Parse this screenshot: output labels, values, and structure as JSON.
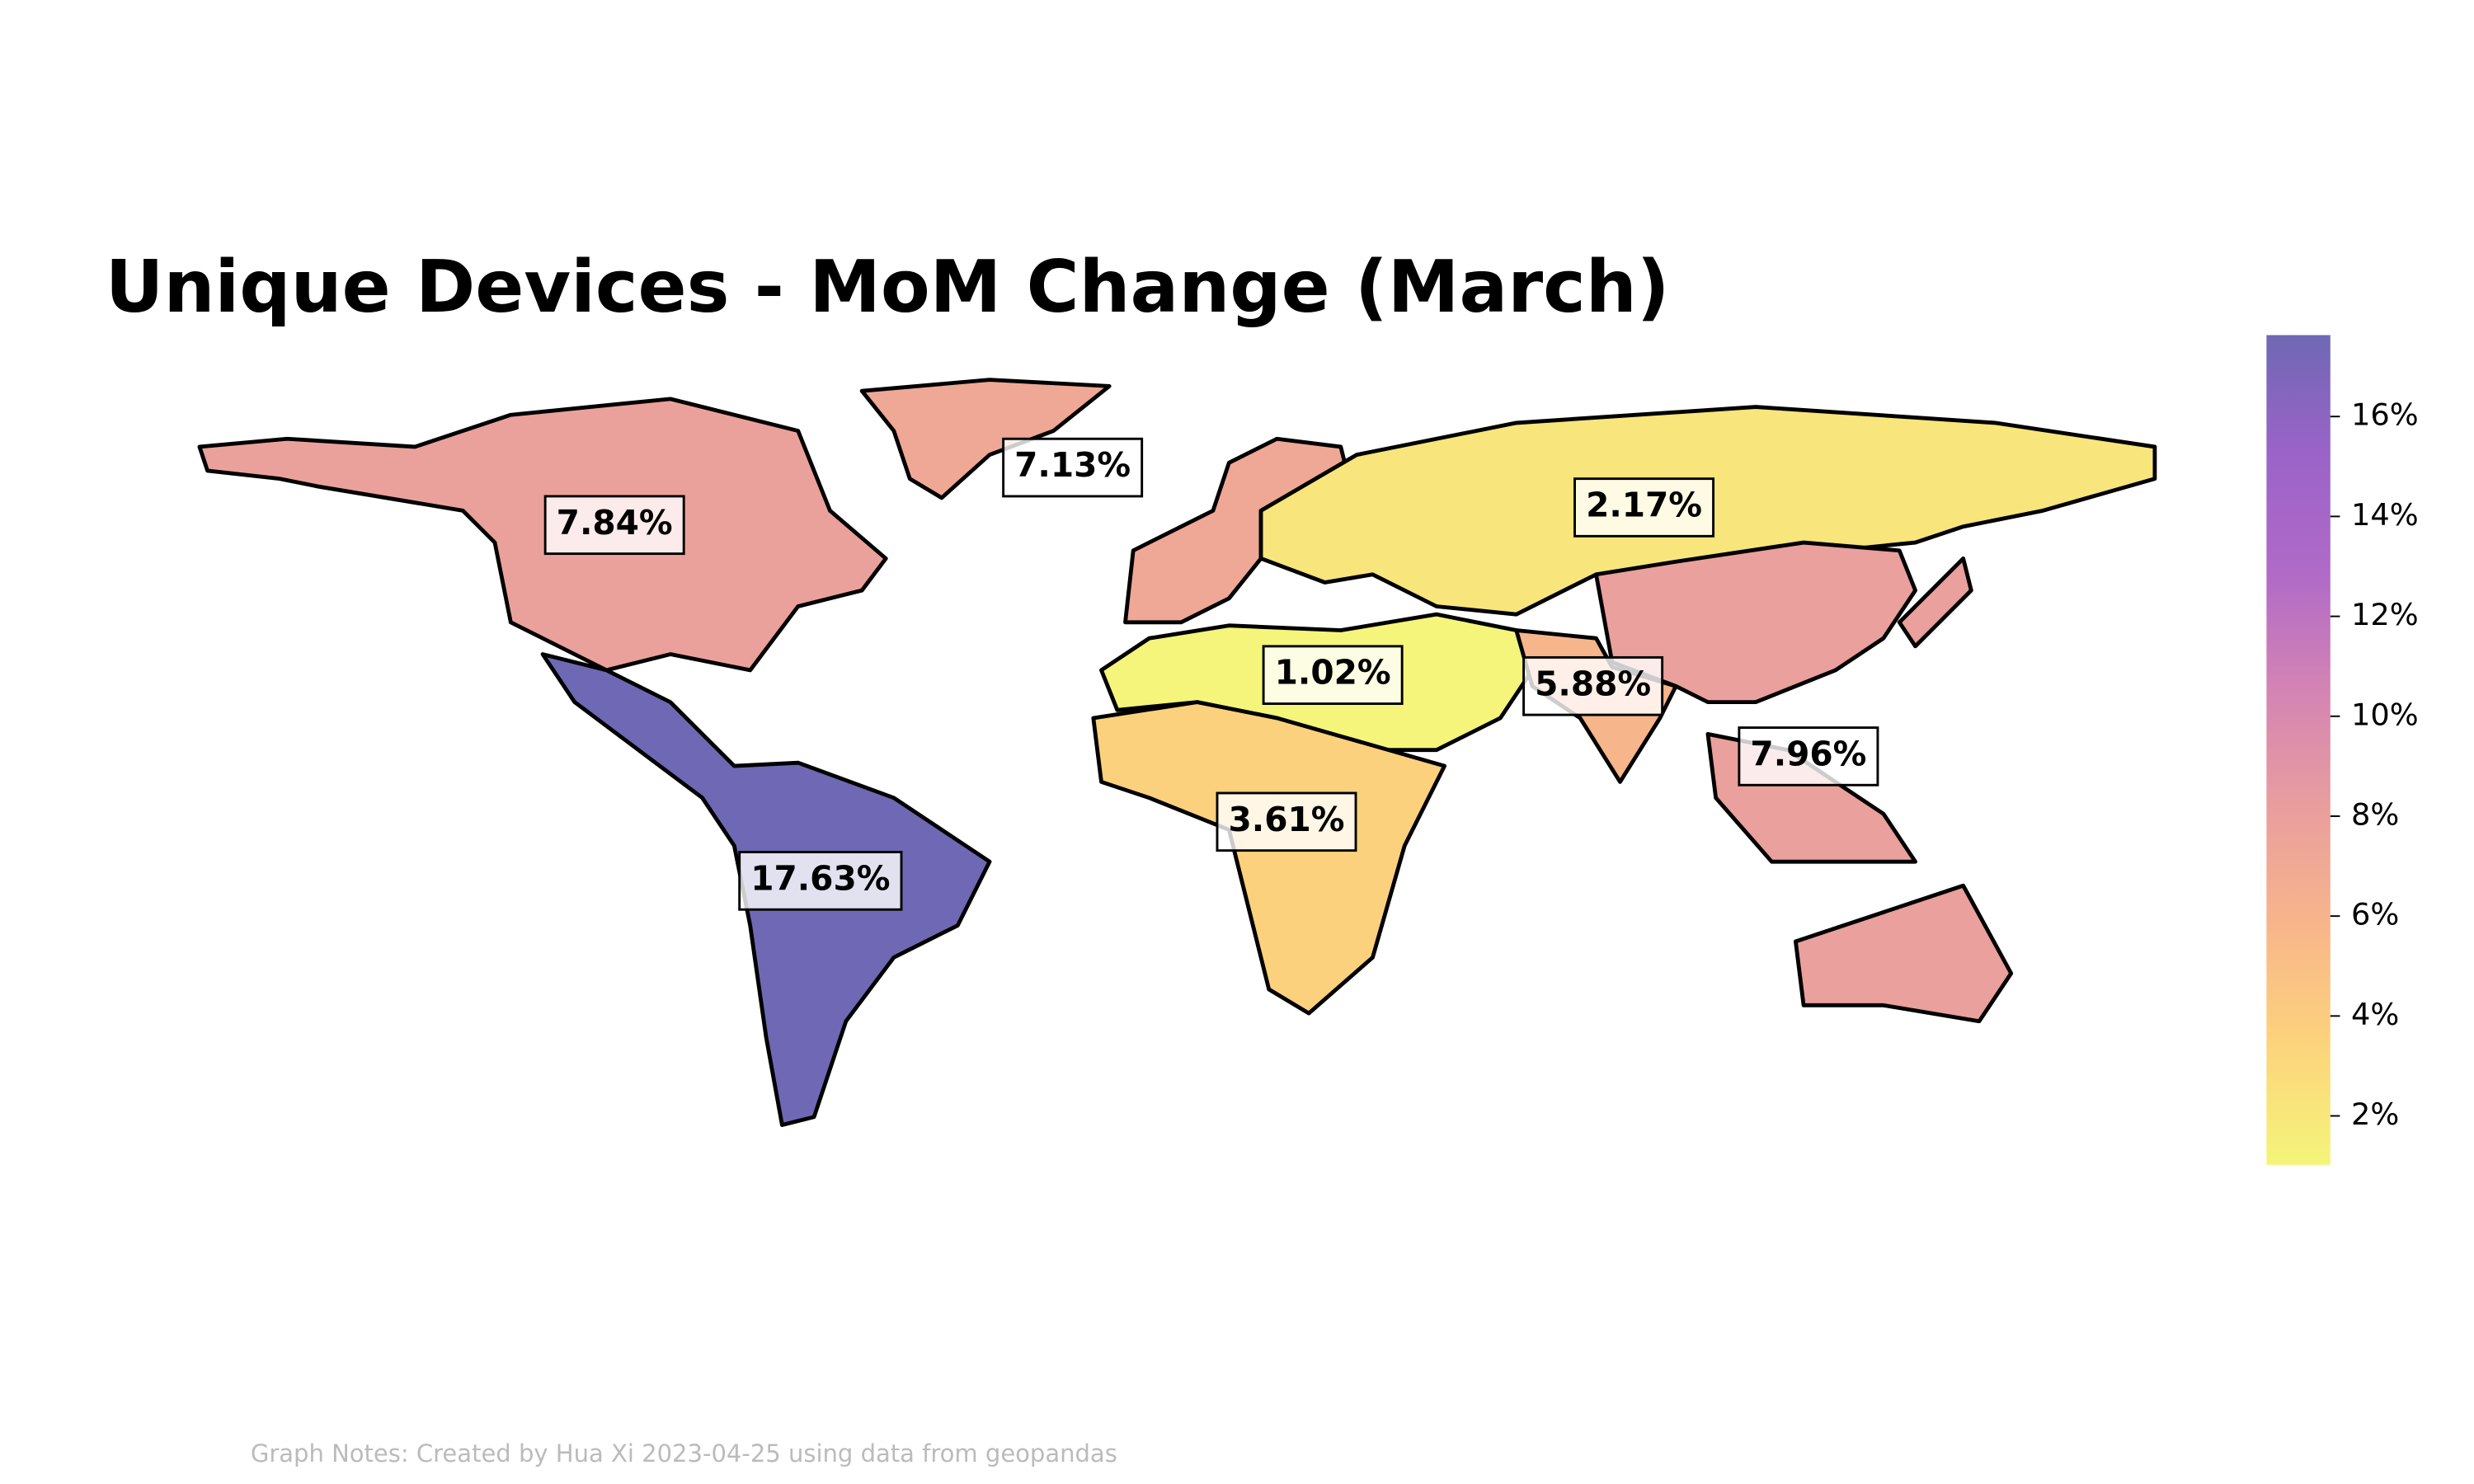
{
  "chart_data": {
    "type": "choropleth",
    "title": "Unique Devices - MoM Change (March)",
    "values": [
      7.84,
      7.13,
      17.63,
      2.17,
      1.02,
      5.88,
      7.96,
      3.61
    ],
    "value_labels": [
      "7.84%",
      "7.13%",
      "17.63%",
      "2.17%",
      "1.02%",
      "5.88%",
      "7.96%",
      "3.61%"
    ],
    "colorscale": [
      "#f4f57a",
      "#fcd47c",
      "#f8b68a",
      "#e99e9e",
      "#d484b3",
      "#b06ac8",
      "#9b63c8",
      "#6f68b4"
    ],
    "clim": [
      1.02,
      17.63
    ],
    "cticks": [
      {
        "value": 2,
        "label": "2%"
      },
      {
        "value": 4,
        "label": "4%"
      },
      {
        "value": 6,
        "label": "6%"
      },
      {
        "value": 8,
        "label": "8%"
      },
      {
        "value": 10,
        "label": "10%"
      },
      {
        "value": 12,
        "label": "12%"
      },
      {
        "value": 14,
        "label": "14%"
      },
      {
        "value": 16,
        "label": "16%"
      }
    ],
    "footnote": "Graph Notes: Created by Hua Xi 2023-04-25 using data from geopandas"
  }
}
